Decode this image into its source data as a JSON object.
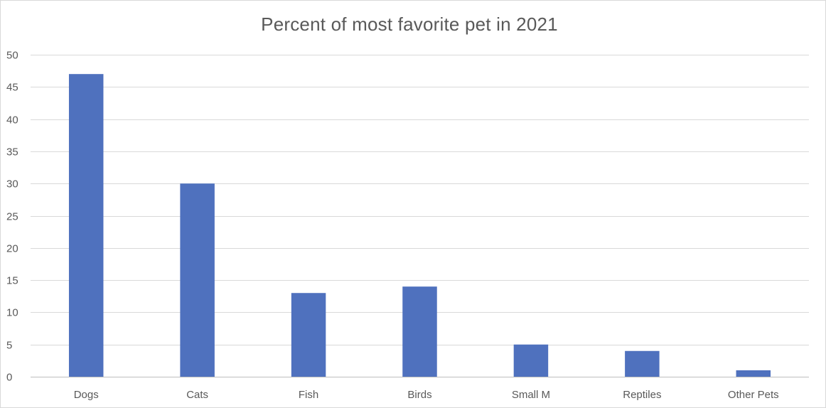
{
  "chart_data": {
    "type": "bar",
    "title": "Percent of most favorite pet in 2021",
    "xlabel": "",
    "ylabel": "",
    "categories": [
      "Dogs",
      "Cats",
      "Fish",
      "Birds",
      "Small M",
      "Reptiles",
      "Other Pets"
    ],
    "values": [
      47,
      30,
      13,
      14,
      5,
      4,
      1
    ],
    "ylim": [
      0,
      50
    ],
    "yticks": [
      0,
      5,
      10,
      15,
      20,
      25,
      30,
      35,
      40,
      45,
      50
    ],
    "grid": true,
    "legend": "none",
    "bar_color": "#4f71be"
  }
}
